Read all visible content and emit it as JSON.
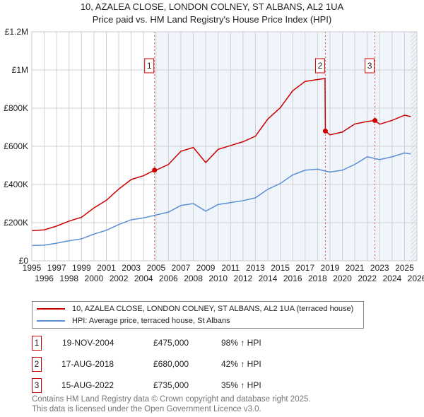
{
  "chart_data": {
    "type": "line",
    "title": "10, AZALEA CLOSE, LONDON COLNEY, ST ALBANS, AL2 1UA",
    "subtitle": "Price paid vs. HM Land Registry's House Price Index (HPI)",
    "xlim": [
      1995,
      2026
    ],
    "ylim": [
      0,
      1200000
    ],
    "x_ticks": [
      "1995",
      "1996",
      "1997",
      "1998",
      "1999",
      "2000",
      "2001",
      "2002",
      "2003",
      "2004",
      "2005",
      "2006",
      "2007",
      "2008",
      "2009",
      "2010",
      "2011",
      "2012",
      "2013",
      "2014",
      "2015",
      "2016",
      "2017",
      "2018",
      "2019",
      "2020",
      "2021",
      "2022",
      "2023",
      "2024",
      "2025",
      "2026"
    ],
    "y_ticks": [
      {
        "v": 0,
        "label": "£0"
      },
      {
        "v": 200000,
        "label": "£200K"
      },
      {
        "v": 400000,
        "label": "£400K"
      },
      {
        "v": 600000,
        "label": "£600K"
      },
      {
        "v": 800000,
        "label": "£800K"
      },
      {
        "v": 1000000,
        "label": "£1M"
      },
      {
        "v": 1200000,
        "label": "£1.2M"
      }
    ],
    "grid": true,
    "series": [
      {
        "name": "10, AZALEA CLOSE, LONDON COLNEY, ST ALBANS, AL2 1UA (terraced house)",
        "color": "#cc0000",
        "x": [
          1995,
          1996,
          1997,
          1998,
          1999,
          2000,
          2001,
          2002,
          2003,
          2004,
          2004.88,
          2005,
          2006,
          2007,
          2008,
          2009,
          2010,
          2011,
          2012,
          2013,
          2014,
          2015,
          2016,
          2017,
          2018,
          2018.6,
          2018.63,
          2019,
          2020,
          2021,
          2022,
          2022.62,
          2023,
          2024,
          2025,
          2025.5
        ],
        "y": [
          158000,
          162000,
          182000,
          208000,
          228000,
          277000,
          317000,
          376000,
          426000,
          446000,
          475000,
          475000,
          505000,
          574000,
          594000,
          515000,
          584000,
          604000,
          624000,
          653000,
          743000,
          802000,
          891000,
          940000,
          950000,
          955000,
          680000,
          660000,
          675000,
          717000,
          730000,
          735000,
          716000,
          736000,
          763000,
          756000
        ]
      },
      {
        "name": "HPI: Average price, terraced house, St Albans",
        "color": "#5b8fd4",
        "x": [
          1995,
          1996,
          1997,
          1998,
          1999,
          2000,
          2001,
          2002,
          2003,
          2004,
          2005,
          2006,
          2007,
          2008,
          2009,
          2010,
          2011,
          2012,
          2013,
          2014,
          2015,
          2016,
          2017,
          2018,
          2019,
          2020,
          2021,
          2022,
          2023,
          2024,
          2025,
          2025.5
        ],
        "y": [
          80000,
          82000,
          92000,
          105000,
          115000,
          140000,
          160000,
          190000,
          215000,
          225000,
          240000,
          255000,
          290000,
          300000,
          260000,
          295000,
          305000,
          315000,
          330000,
          375000,
          405000,
          450000,
          475000,
          480000,
          465000,
          475000,
          505000,
          545000,
          530000,
          545000,
          565000,
          560000
        ]
      }
    ],
    "sales": [
      {
        "id": "1",
        "x": 2004.88,
        "price": 475000,
        "date": "19-NOV-2004",
        "price_label": "£475,000",
        "hpi": "98% ↑ HPI"
      },
      {
        "id": "2",
        "x": 2018.63,
        "price": 680000,
        "date": "17-AUG-2018",
        "price_label": "£680,000",
        "hpi": "42% ↑ HPI"
      },
      {
        "id": "3",
        "x": 2022.62,
        "price": 735000,
        "date": "15-AUG-2022",
        "price_label": "£735,000",
        "hpi": "35% ↑ HPI"
      }
    ],
    "legend_placement": "bottom"
  },
  "footer": {
    "line1": "Contains HM Land Registry data © Crown copyright and database right 2025.",
    "line2": "This data is licensed under the Open Government Licence v3.0."
  }
}
